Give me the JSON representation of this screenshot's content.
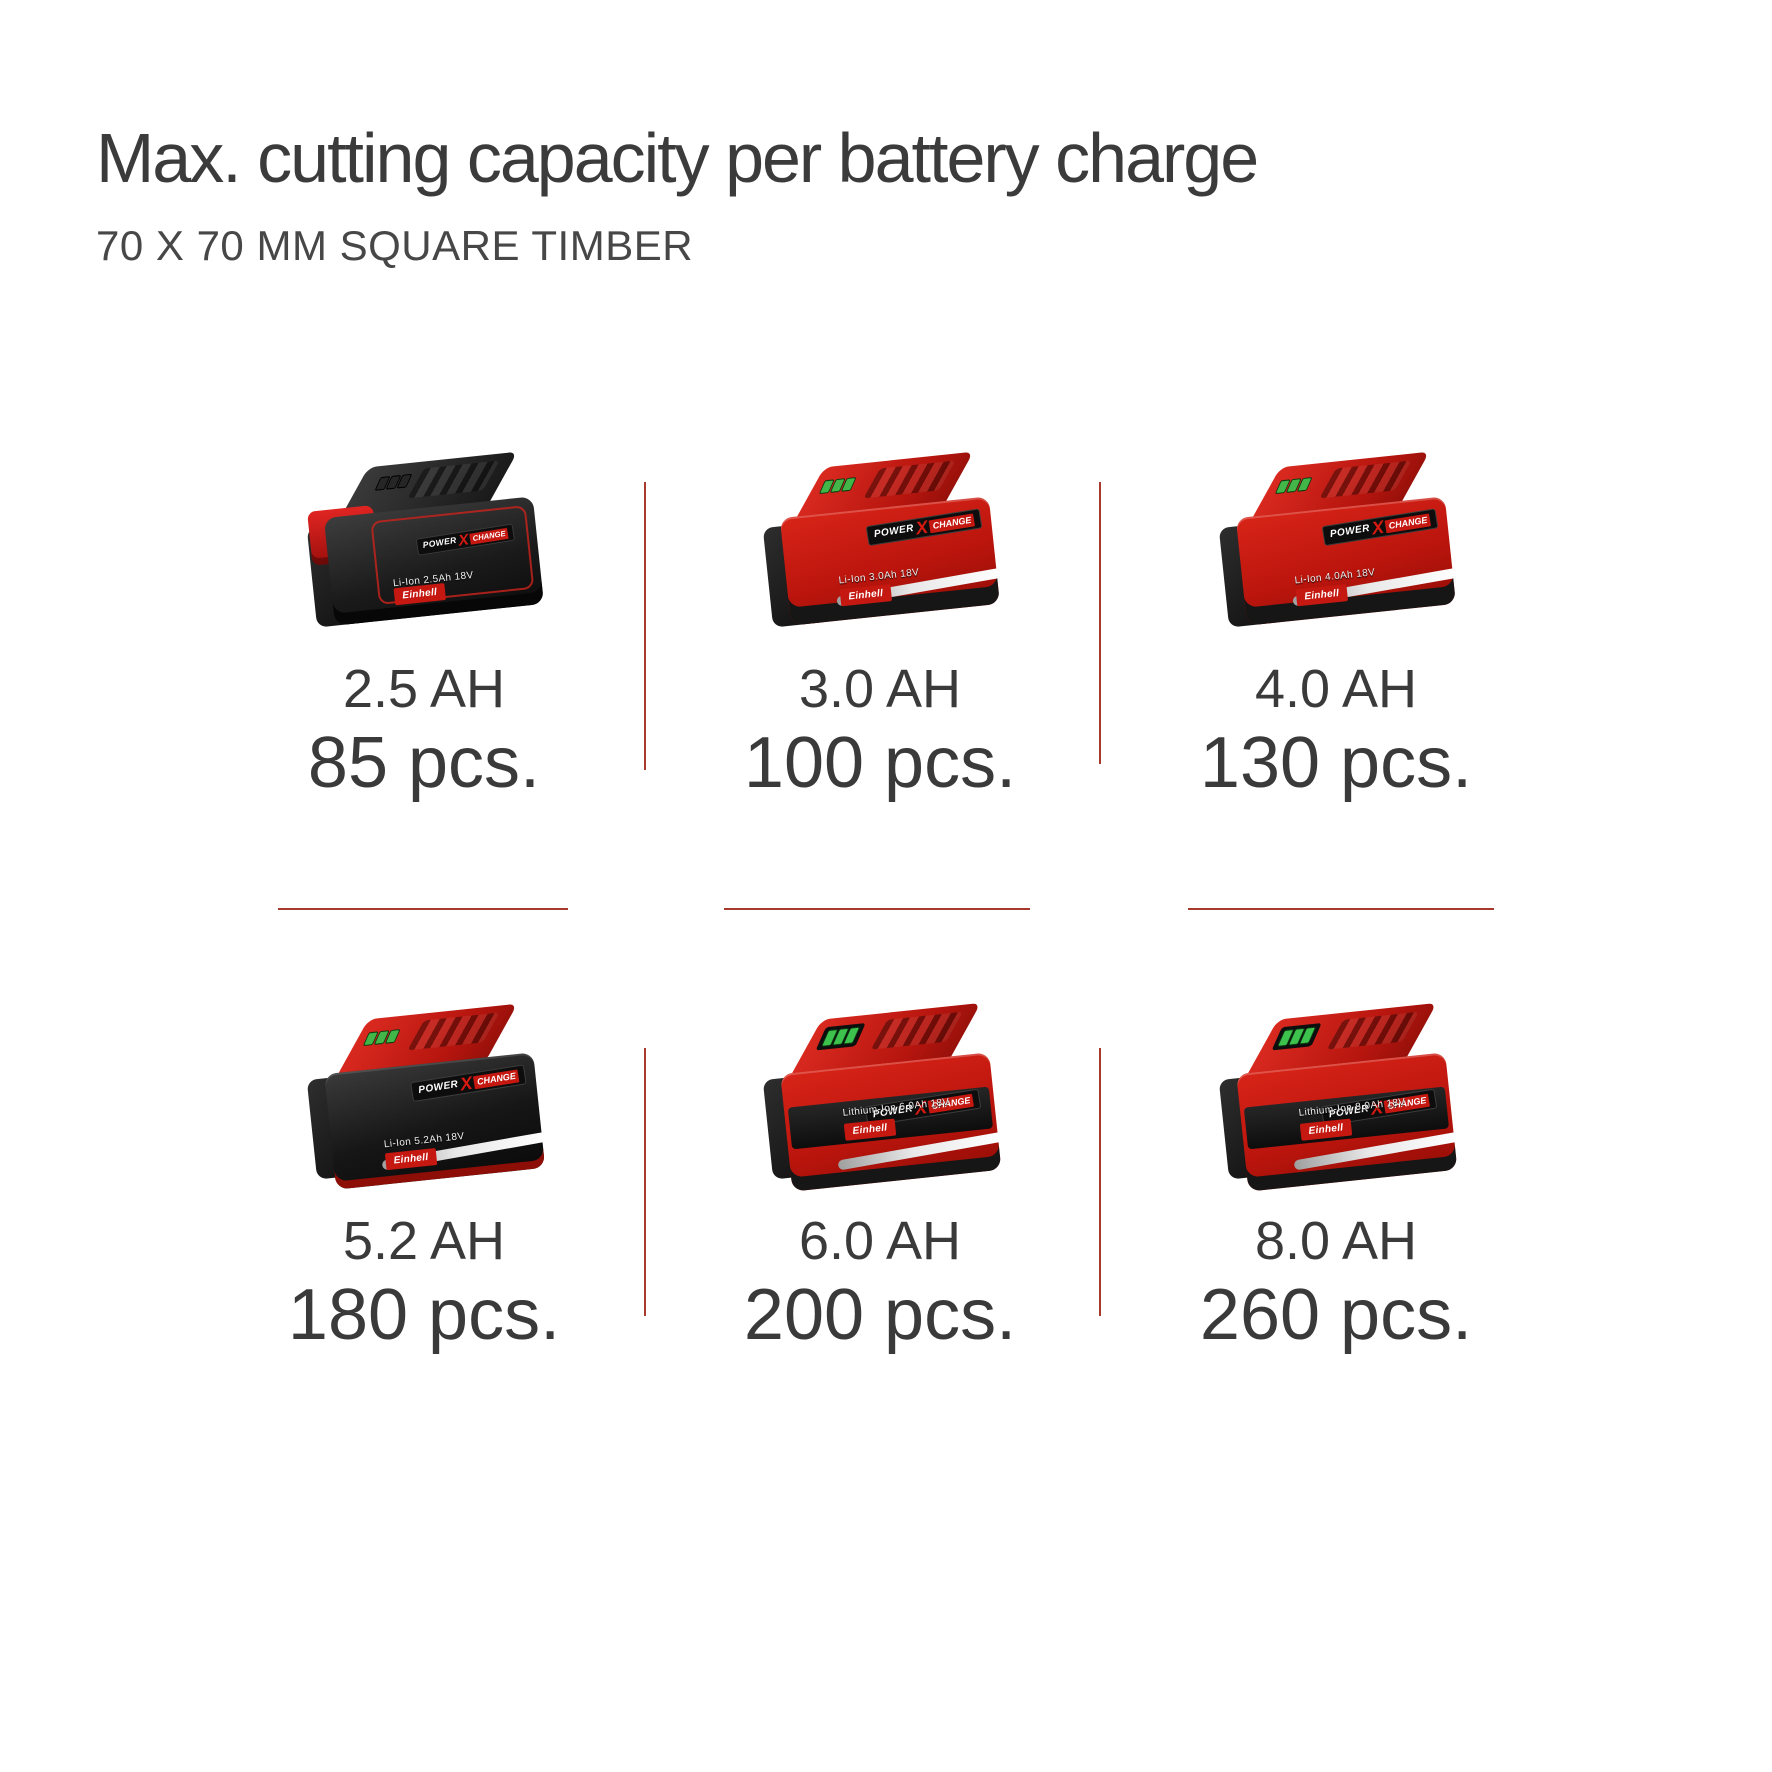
{
  "header": {
    "title": "Max. cutting capacity per battery charge",
    "subtitle": "70 X 70 MM SQUARE TIMBER"
  },
  "brand": "Einhell",
  "pxc_logo": {
    "power": "POWER",
    "x": "X",
    "change": "CHANGE"
  },
  "cells": [
    {
      "capacity": "2.5 AH",
      "pieces": "85 pcs.",
      "spec": "Li-Ion 2.5Ah 18V"
    },
    {
      "capacity": "3.0 AH",
      "pieces": "100 pcs.",
      "spec": "Li-Ion 3.0Ah 18V"
    },
    {
      "capacity": "4.0 AH",
      "pieces": "130 pcs.",
      "spec": "Li-Ion 4.0Ah 18V"
    },
    {
      "capacity": "5.2 AH",
      "pieces": "180 pcs.",
      "spec": "Li-Ion 5.2Ah 18V"
    },
    {
      "capacity": "6.0 AH",
      "pieces": "200 pcs.",
      "spec": "Lithium-Ion 6.0Ah 18V"
    },
    {
      "capacity": "8.0 AH",
      "pieces": "260 pcs.",
      "spec": "Lithium-Ion 8.0Ah 18V"
    }
  ],
  "colors": {
    "background": "#ffffff",
    "heading_text": "#3b3b3b",
    "value_text": "#3a3a3a",
    "divider_red": "#a8392f",
    "einhell_red": "#c41811",
    "led_green": "#43b649"
  }
}
